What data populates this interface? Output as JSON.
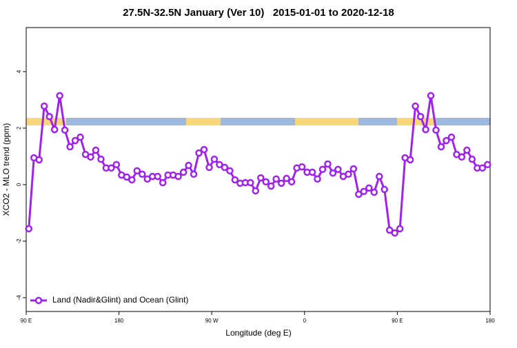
{
  "chart_data": {
    "type": "line",
    "title": "27.5N-32.5N January (Ver 10)   2015-01-01 to 2020-12-18",
    "xlabel": "Longitude (deg E)",
    "ylabel": "XCO2 - MLO trend (ppm)",
    "x": [
      92.5,
      97.5,
      102.5,
      107.5,
      112.5,
      117.5,
      122.5,
      127.5,
      132.5,
      137.5,
      142.5,
      147.5,
      152.5,
      157.5,
      162.5,
      167.5,
      172.5,
      177.5,
      182.5,
      187.5,
      192.5,
      197.5,
      202.5,
      207.5,
      212.5,
      217.5,
      222.5,
      227.5,
      232.5,
      237.5,
      242.5,
      247.5,
      252.5,
      257.5,
      262.5,
      267.5,
      272.5,
      277.5,
      282.5,
      287.5,
      292.5,
      297.5,
      302.5,
      307.5,
      312.5,
      317.5,
      322.5,
      327.5,
      332.5,
      337.5,
      342.5,
      347.5,
      352.5,
      357.5,
      362.5,
      367.5,
      372.5,
      377.5,
      382.5,
      387.5,
      392.5,
      397.5,
      402.5,
      407.5,
      412.5,
      417.5,
      422.5,
      427.5,
      432.5,
      437.5,
      442.5,
      447.5,
      452.5,
      457.5,
      462.5,
      467.5,
      472.5,
      477.5,
      482.5,
      487.5,
      492.5,
      497.5,
      502.5,
      507.5,
      512.5,
      517.5,
      522.5,
      527.5,
      532.5,
      537.5
    ],
    "series": [
      {
        "name": "Land (Nadir&Glint) and Ocean (Glint)",
        "color": "#a020f0",
        "values": [
          -1.56,
          0.95,
          0.88,
          2.78,
          2.41,
          1.95,
          3.15,
          1.93,
          1.34,
          1.56,
          1.68,
          1.07,
          0.98,
          1.22,
          0.9,
          0.59,
          0.59,
          0.71,
          0.34,
          0.27,
          0.17,
          0.49,
          0.37,
          0.2,
          0.29,
          0.29,
          0.07,
          0.34,
          0.34,
          0.29,
          0.44,
          0.68,
          0.37,
          1.12,
          1.24,
          0.61,
          0.9,
          0.71,
          0.61,
          0.49,
          0.17,
          0.05,
          0.07,
          0.07,
          -0.22,
          0.24,
          0.1,
          -0.05,
          0.2,
          0.05,
          0.22,
          0.1,
          0.59,
          0.63,
          0.44,
          0.44,
          0.2,
          0.54,
          0.73,
          0.41,
          0.54,
          0.29,
          0.37,
          0.56,
          -0.34,
          -0.24,
          -0.12,
          -0.27,
          0.29,
          -0.17,
          -1.61,
          -1.71,
          -1.56,
          0.95,
          0.88,
          2.78,
          2.41,
          1.95,
          3.15,
          1.93,
          1.34,
          1.56,
          1.68,
          1.07,
          0.98,
          1.22,
          0.9,
          0.59,
          0.59,
          0.71
        ]
      }
    ],
    "xlim": [
      90,
      540
    ],
    "xticks": [
      {
        "value": 90,
        "label": "90 E"
      },
      180,
      {
        "value": 270,
        "label": "90 W"
      },
      {
        "value": 360,
        "label": "0"
      },
      {
        "value": 450,
        "label": "90 E"
      },
      {
        "value": 540,
        "label": "180"
      }
    ],
    "ylim": [
      -4.49,
      5.56
    ],
    "yticks": [
      -4,
      -2,
      0,
      2,
      4
    ],
    "grid": false,
    "legend": "bottom-left"
  }
}
